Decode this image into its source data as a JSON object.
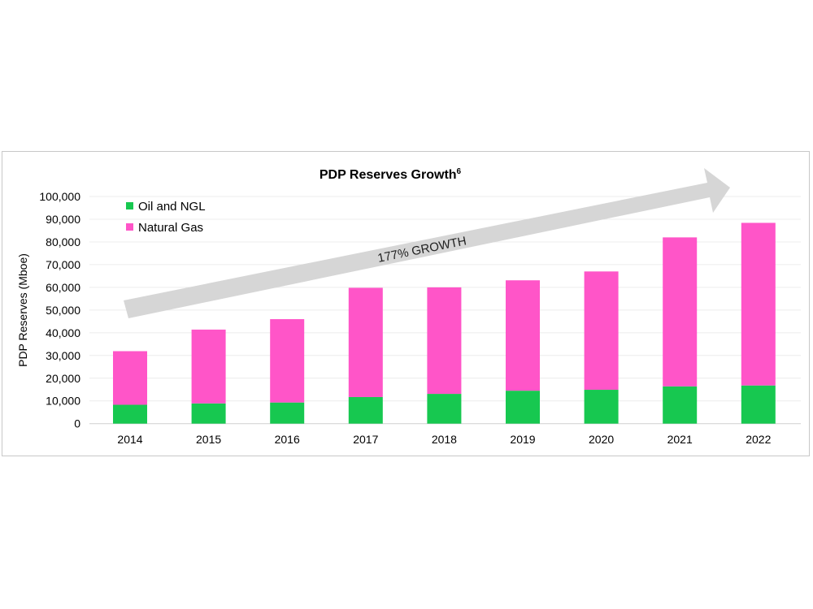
{
  "chart_data": {
    "type": "bar",
    "stacked": true,
    "title": "PDP Reserves Growth",
    "title_superscript": "6",
    "xlabel": "",
    "ylabel": "PDP Reserves (Mboe)",
    "ylim": [
      0,
      100000
    ],
    "yticks": [
      "0",
      "10,000",
      "20,000",
      "30,000",
      "40,000",
      "50,000",
      "60,000",
      "70,000",
      "80,000",
      "90,000",
      "100,000"
    ],
    "grid": true,
    "legend_position": "top-left",
    "categories": [
      "2014",
      "2015",
      "2016",
      "2017",
      "2018",
      "2019",
      "2020",
      "2021",
      "2022"
    ],
    "series": [
      {
        "name": "Oil and NGL",
        "color": "#17c850",
        "values": [
          8300,
          8900,
          9300,
          11700,
          13100,
          14500,
          14900,
          16400,
          16800
        ]
      },
      {
        "name": "Natural Gas",
        "color": "#ff55c8",
        "values": [
          23600,
          32500,
          36700,
          48100,
          46900,
          48600,
          52100,
          65600,
          71600
        ]
      }
    ],
    "annotation": {
      "text": "177% GROWTH",
      "arrow_color": "#d6d6d6"
    }
  }
}
